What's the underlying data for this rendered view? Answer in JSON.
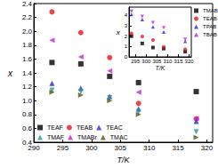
{
  "chart_data": [
    {
      "type": "scatter",
      "x_label": "T/K",
      "y_label": "x",
      "xlim": [
        290,
        321
      ],
      "xticks": [
        290,
        295,
        300,
        305,
        310,
        315,
        320
      ],
      "ylim": [
        0.4,
        2.4
      ],
      "yticks": [
        0.4,
        0.6,
        0.8,
        {
          "value": 1,
          "label": "1.0"
        },
        1.2,
        1.4,
        1.6,
        1.8,
        {
          "value": 2,
          "label": "2.0"
        },
        2.2,
        2.4
      ],
      "grid": false,
      "legend": "lower left",
      "x": [
        293.15,
        298.15,
        303.15,
        308.15,
        318.15
      ],
      "series": [
        {
          "name": "TEAF",
          "color": "#000000",
          "marker": "square",
          "values": [
            1.55,
            1.53,
            1.35,
            1.26,
            1.13
          ]
        },
        {
          "name": "TEAB",
          "color": "#e8141b",
          "marker": "circle",
          "values": [
            2.28,
            1.98,
            1.62,
            0.96,
            0.74
          ]
        },
        {
          "name": "TEAC",
          "color": "#2424e0",
          "marker": "triangle-up",
          "values": [
            1.25,
            1.18,
            1.06,
            0.88,
            0.7
          ]
        },
        {
          "name": "TMAF",
          "color": "#2a9a8a",
          "marker": "triangle-down",
          "values": [
            1.15,
            1.13,
            1.04,
            0.84,
            0.55
          ]
        },
        {
          "name": "TMABr",
          "color": "#c21fe0",
          "marker": "triangle-left",
          "values": [
            1.87,
            1.63,
            1.43,
            1.12,
            0.74
          ]
        },
        {
          "name": "TMAC",
          "color": "#4a5a12",
          "marker": "triangle-right",
          "values": [
            1.12,
            1.08,
            1.0,
            0.8,
            0.47
          ]
        }
      ]
    },
    {
      "type": "scatter",
      "x_label": "T/K",
      "y_label": "x",
      "xlim": [
        292,
        321
      ],
      "xticks": [
        295,
        300,
        305,
        310,
        315,
        320
      ],
      "ylim": [
        0,
        4.8
      ],
      "yticks": [
        0,
        1,
        2,
        3,
        4
      ],
      "grid": false,
      "legend": "right",
      "x": [
        293.15,
        298.15,
        303.15,
        308.15,
        318.15
      ],
      "series": [
        {
          "name": "TMAB",
          "color": "#000000",
          "marker": "square",
          "values": [
            2.0,
            1.3,
            0.9,
            0.8,
            0.5
          ]
        },
        {
          "name": "TEAB",
          "color": "#e8141b",
          "marker": "circle",
          "values": [
            2.28,
            1.98,
            1.62,
            0.96,
            0.74
          ]
        },
        {
          "name": "TPAB",
          "color": "#2424e0",
          "marker": "triangle-up",
          "values": [
            4.1,
            3.6,
            2.9,
            2.4,
            1.5
          ]
        },
        {
          "name": "TBAB",
          "color": "#c21fe0",
          "marker": "triangle-down",
          "values": [
            4.4,
            3.9,
            3.3,
            2.8,
            1.7
          ]
        }
      ]
    }
  ]
}
